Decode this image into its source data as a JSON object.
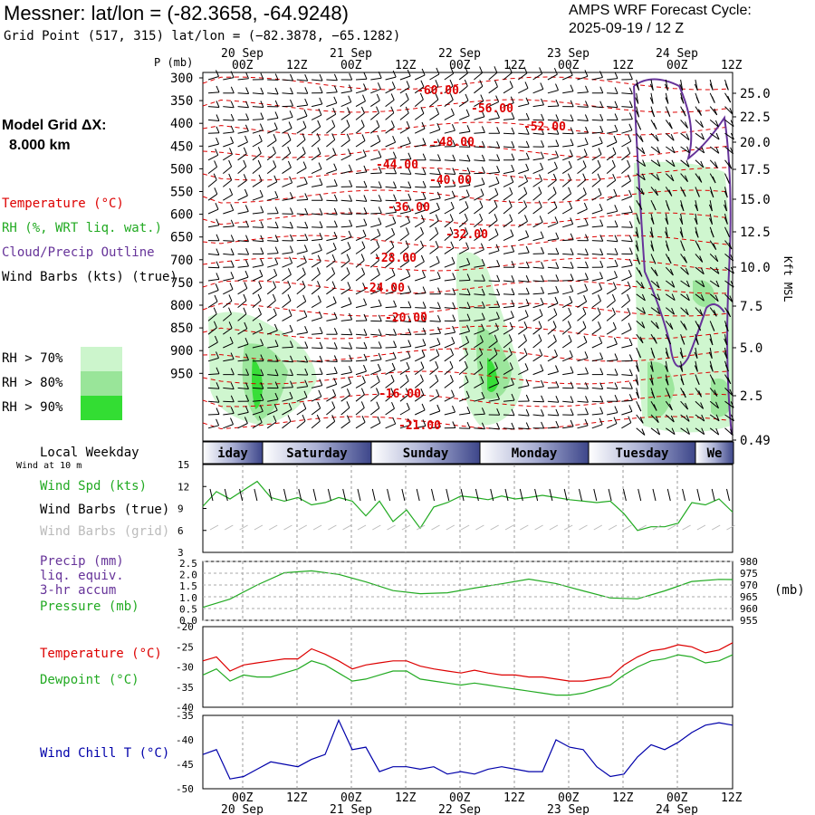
{
  "header": {
    "title": "Messner:  lat/lon = (-82.3658, -64.9248)",
    "grid_point": "Grid Point (517, 315) lat/lon = (−82.3878, −65.1282)",
    "cycle_line1": "AMPS WRF Forecast Cycle:",
    "cycle_line2": "2025-09-19 / 12  Z",
    "grid_label": "Model Grid ΔX:",
    "grid_value": "8.000 km"
  },
  "legend": {
    "temperature": "Temperature (°C)",
    "rh": "RH (%, WRT liq. wat.)",
    "cloud": "Cloud/Precip Outline",
    "wind_barbs": "Wind Barbs (kts) (true)",
    "rh70": "RH > 70%",
    "rh80": "RH > 80%",
    "rh90": "RH > 90%",
    "rh_colors": [
      "#ccf5cc",
      "#99e599",
      "#33dd33"
    ]
  },
  "axes": {
    "p_label": "P (mb)",
    "right_label": "Kft MSL",
    "mb_label": "(mb)",
    "date_labels": [
      "20 Sep",
      "21 Sep",
      "22 Sep",
      "23 Sep",
      "24 Sep"
    ],
    "hour_labels": [
      "00Z",
      "12Z",
      "00Z",
      "12Z",
      "00Z",
      "12Z",
      "00Z",
      "12Z",
      "00Z",
      "12Z"
    ]
  },
  "weekdays": {
    "title": "Local Weekday",
    "sub": "Wind at 10 m",
    "days": [
      "iday",
      "Saturday",
      "Sunday",
      "Monday",
      "Tuesday",
      "We"
    ]
  },
  "panels": {
    "wind": {
      "spd": "Wind Spd (kts)",
      "barbs": "Wind Barbs (true)",
      "grid": "Wind Barbs (grid)"
    },
    "precip": {
      "l1": "Precip (mm)",
      "l2": "liq. equiv.",
      "l3": "3-hr accum",
      "l4": "Pressure (mb)"
    },
    "temp": {
      "t": "Temperature (°C)",
      "d": "Dewpoint (°C)"
    },
    "chill": {
      "t": "Wind Chill T (°C)"
    }
  },
  "colors": {
    "temp": "#dd0000",
    "rh": "#22aa22",
    "cloud": "#663399",
    "chill": "#0000aa",
    "weekday": "#5560a0"
  },
  "chart_data": [
    {
      "type": "line",
      "panel": "skew-t time-height",
      "title": "Temperature / RH / Wind vs Pressure",
      "pressure_ticks": [
        300,
        350,
        400,
        450,
        500,
        550,
        600,
        650,
        700,
        750,
        800,
        850,
        900,
        950
      ],
      "height_ticks": [
        "25.0",
        "22.5",
        "20.0",
        "17.5",
        "15.0",
        "12.5",
        "10.0",
        "7.5",
        "5.0",
        "2.5",
        "0.49"
      ],
      "isotherm_labels": [
        "-60.00",
        "-56.00",
        "-52.00",
        "-48.00",
        "-44.00",
        "-40.00",
        "-36.00",
        "-32.00",
        "-28.00",
        "-24.00",
        "-20.00",
        "-16.00",
        "-21.00"
      ]
    },
    {
      "type": "line",
      "panel": "wind speed",
      "ylabel": "Wind Spd (kts)",
      "ylim": [
        3,
        15
      ],
      "y_ticks": [
        "15",
        "12",
        "9",
        "6",
        "3"
      ],
      "x_hours": [
        0,
        3,
        6,
        9,
        12,
        15,
        18,
        21,
        24,
        27,
        30,
        33,
        36,
        39,
        42,
        45,
        48,
        51,
        54,
        57,
        60,
        63,
        66,
        69,
        72,
        75,
        78,
        81,
        84,
        87,
        90,
        93,
        96,
        99,
        102,
        105,
        108,
        111,
        114,
        117
      ],
      "values": [
        9.3,
        11.3,
        10.3,
        11.5,
        12.7,
        10.5,
        10.0,
        10.5,
        9.5,
        9.8,
        10.5,
        10.0,
        8.0,
        10.0,
        7.2,
        8.8,
        6.3,
        9.2,
        9.8,
        10.7,
        10.5,
        10.2,
        10.7,
        10.3,
        10.5,
        10.8,
        10.5,
        10.2,
        10.0,
        9.8,
        10.0,
        8.3,
        6.0,
        6.5,
        6.5,
        7.0,
        9.8,
        9.5,
        10.3,
        8.5
      ]
    },
    {
      "type": "line",
      "panel": "pressure",
      "ylabel": "Pressure (mb)",
      "ylim": [
        955,
        980
      ],
      "y_ticks_left": [
        "2.5",
        "2.0",
        "1.5",
        "1.0",
        "0.5",
        "0.0"
      ],
      "y_ticks_right": [
        "980",
        "975",
        "970",
        "965",
        "960",
        "955"
      ],
      "x_hours": [
        0,
        6,
        12,
        18,
        24,
        30,
        36,
        42,
        48,
        54,
        60,
        66,
        72,
        78,
        84,
        90,
        96,
        102,
        108,
        114,
        117
      ],
      "values": [
        960.5,
        964.0,
        970.0,
        975.2,
        976.0,
        974.5,
        971.3,
        967.6,
        966.3,
        966.7,
        968.7,
        970.5,
        972.5,
        970.6,
        967.5,
        964.5,
        964.1,
        967.5,
        971.5,
        972.4,
        972.3
      ]
    },
    {
      "type": "line",
      "panel": "temperature",
      "ylim": [
        -40,
        -20
      ],
      "y_ticks": [
        "-20",
        "-25",
        "-30",
        "-35",
        "-40"
      ],
      "x_hours": [
        0,
        3,
        6,
        9,
        12,
        15,
        18,
        21,
        24,
        27,
        30,
        33,
        36,
        39,
        42,
        45,
        48,
        51,
        54,
        57,
        60,
        63,
        66,
        69,
        72,
        75,
        78,
        81,
        84,
        87,
        90,
        93,
        96,
        99,
        102,
        105,
        108,
        111,
        114,
        117
      ],
      "series": [
        {
          "name": "Temperature (°C)",
          "values": [
            -28.5,
            -27.5,
            -31.0,
            -29.5,
            -29.0,
            -28.5,
            -28.0,
            -28.0,
            -25.5,
            -26.8,
            -28.5,
            -30.5,
            -29.5,
            -29.0,
            -28.5,
            -28.5,
            -29.8,
            -30.5,
            -31.0,
            -31.5,
            -30.8,
            -31.5,
            -32.0,
            -32.0,
            -32.5,
            -32.5,
            -33.0,
            -33.5,
            -33.5,
            -33.0,
            -32.5,
            -29.5,
            -27.5,
            -26.0,
            -25.5,
            -24.5,
            -25.0,
            -26.5,
            -25.8,
            -24.0
          ]
        },
        {
          "name": "Dewpoint (°C)",
          "values": [
            -32.0,
            -30.5,
            -33.5,
            -32.0,
            -32.5,
            -32.5,
            -31.5,
            -30.5,
            -28.5,
            -29.5,
            -31.5,
            -33.5,
            -33.0,
            -32.0,
            -31.0,
            -31.0,
            -33.0,
            -33.5,
            -34.0,
            -34.5,
            -34.0,
            -34.5,
            -35.0,
            -35.5,
            -36.0,
            -36.5,
            -37.0,
            -37.0,
            -36.5,
            -35.5,
            -34.5,
            -32.0,
            -30.0,
            -28.5,
            -28.0,
            -27.0,
            -27.5,
            -29.0,
            -28.5,
            -27.0
          ]
        }
      ]
    },
    {
      "type": "line",
      "panel": "wind chill",
      "ylabel": "Wind Chill T (°C)",
      "ylim": [
        -50,
        -35
      ],
      "y_ticks": [
        "-35",
        "-40",
        "-45",
        "-50"
      ],
      "x_hours": [
        0,
        3,
        6,
        9,
        12,
        15,
        18,
        21,
        24,
        27,
        30,
        33,
        36,
        39,
        42,
        45,
        48,
        51,
        54,
        57,
        60,
        63,
        66,
        69,
        72,
        75,
        78,
        81,
        84,
        87,
        90,
        93,
        96,
        99,
        102,
        105,
        108,
        111,
        114,
        117
      ],
      "values": [
        -43,
        -42,
        -48,
        -47.5,
        -46,
        -44.5,
        -45,
        -45.5,
        -44,
        -43,
        -36,
        -42,
        -41.5,
        -46.5,
        -45.5,
        -45.5,
        -46,
        -45.5,
        -47,
        -46.5,
        -47,
        -46,
        -45.5,
        -46,
        -46.5,
        -46.5,
        -40,
        -41.5,
        -42,
        -45.5,
        -47.5,
        -47,
        -43.5,
        -41,
        -42,
        -40.5,
        -38.5,
        -37,
        -36.5,
        -37
      ]
    }
  ]
}
